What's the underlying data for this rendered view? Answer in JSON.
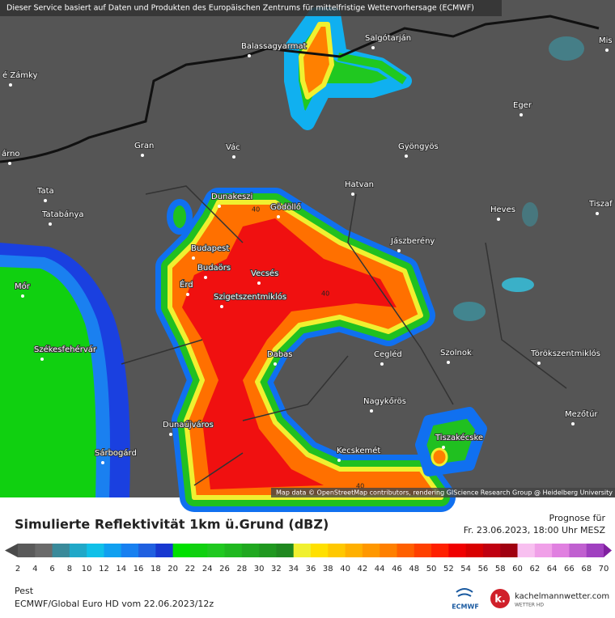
{
  "banner": "Dieser Service basiert auf Daten und Produkten des Europäischen Zentrums für mittelfristige Wettervorhersage (ECMWF)",
  "places": [
    "é Zámky",
    "árno",
    "Balassagyarmat",
    "Salgótarján",
    "Mis",
    "Eger",
    "Gran",
    "Vác",
    "Gyöngyös",
    "Tata",
    "Hatvan",
    "Dunakeszi",
    "Gödöllő",
    "Heves",
    "Tiszaf",
    "Tatabánya",
    "Jászberény",
    "Budapest",
    "Budaörs",
    "Vecsés",
    "Mór",
    "Érd",
    "Szigetszentmiklós",
    "Székesfehérvár",
    "Dabas",
    "Cegléd",
    "Szolnok",
    "Törökszentmiklós",
    "Nagykőrös",
    "Mezőtúr",
    "Dunaújváros",
    "Tiszakécske",
    "Sárbogárd",
    "Kecskemét"
  ],
  "contour_labels": [
    40,
    40,
    40
  ],
  "attribution": "Map data © OpenStreetMap contributors, rendering GIScience Research Group @ Heidelberg University",
  "title": "Simulierte Reflektivität 1km ü.Grund (dBZ)",
  "forecast_label": "Prognose für",
  "forecast_time": "Fr. 23.06.2023, 18:00 Uhr MESZ",
  "colorbar": {
    "ticks": [
      2,
      4,
      6,
      8,
      10,
      12,
      14,
      16,
      18,
      20,
      22,
      24,
      26,
      28,
      30,
      32,
      34,
      36,
      38,
      40,
      42,
      44,
      46,
      48,
      50,
      52,
      54,
      56,
      58,
      60,
      62,
      64,
      66,
      68,
      70
    ],
    "colors": [
      "#4a4a4a",
      "#5a5a5a",
      "#6a6a6a",
      "#3a8a9a",
      "#20a8c8",
      "#10c0e8",
      "#10a0f0",
      "#1880f0",
      "#2060e0",
      "#1838d0",
      "#00e000",
      "#10d010",
      "#20c820",
      "#20b820",
      "#20a820",
      "#209820",
      "#208820",
      "#f0f030",
      "#ffe000",
      "#ffc800",
      "#ffb000",
      "#ff9800",
      "#ff8000",
      "#ff6000",
      "#ff4000",
      "#ff2000",
      "#f00000",
      "#d80000",
      "#c00010",
      "#a00010",
      "#f8c0f0",
      "#f0a0e8",
      "#e080e0",
      "#c060d0",
      "#a040c0",
      "#8020a0"
    ]
  },
  "region": "Pest",
  "model_run": "ECMWF/Global Euro HD vom 22.06.2023/12z",
  "logos": {
    "ecmwf": "ECMWF",
    "site": "kachelmannwetter.com",
    "site_sub": "WETTER HD"
  }
}
